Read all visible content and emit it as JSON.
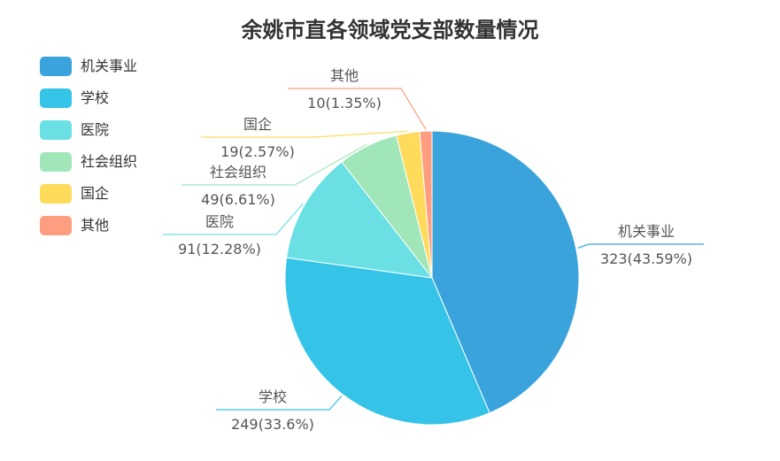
{
  "chart_data": {
    "type": "pie",
    "title": "余姚市直各领域党支部数量情况",
    "categories": [
      "机关事业",
      "学校",
      "医院",
      "社会组织",
      "国企",
      "其他"
    ],
    "values": [
      323,
      249,
      91,
      49,
      19,
      10
    ],
    "percent_labels": [
      "323(43.59%)",
      "249(33.6%)",
      "91(12.28%)",
      "49(6.61%)",
      "19(2.57%)",
      "10(1.35%)"
    ],
    "colors": [
      "#3aa3dc",
      "#35c4e8",
      "#6ae0e4",
      "#a1e6b9",
      "#fedb5b",
      "#fe9d7f"
    ],
    "legend_position": "top-left"
  }
}
